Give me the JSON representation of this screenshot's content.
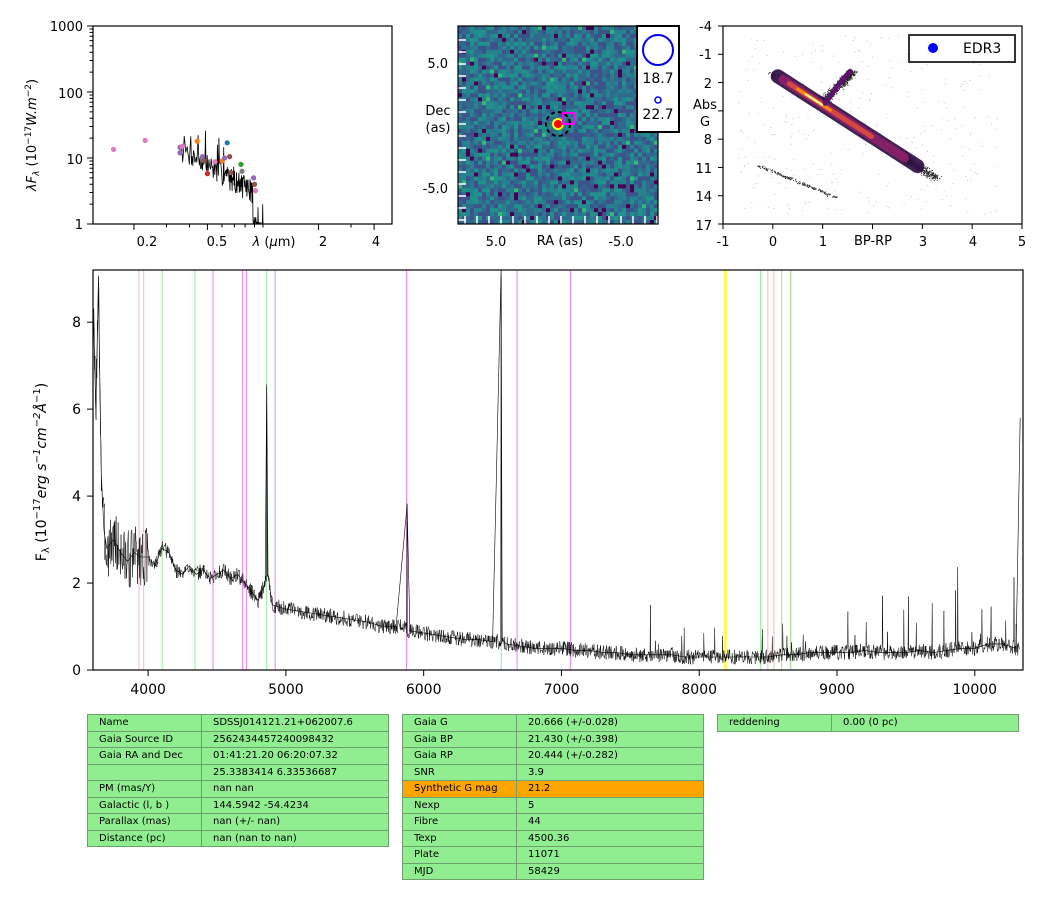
{
  "colors": {
    "spectrum": "#000000",
    "cmd_legend_marker": "#0000ff",
    "table_cell": "#90ee90",
    "table_highlight": "#ffa500",
    "line_yellow": "#ffff00"
  },
  "sed": {
    "ylabel": "λF_λ (10^-17 W.m^-2)",
    "xlabel": "λ (μm)",
    "y_ticks": [
      "1",
      "10",
      "100",
      "1000"
    ],
    "x_ticks": [
      "0.2",
      "0.5",
      "2",
      "4"
    ]
  },
  "image": {
    "ylabel_1": "Dec",
    "ylabel_2": "(as)",
    "xlabel": "RA (as)",
    "x_ticks": [
      "5.0",
      "-5.0"
    ],
    "y_ticks": [
      "5.0",
      "-5.0"
    ],
    "legend_mag_1": "18.7",
    "legend_mag_2": "22.7"
  },
  "cmd": {
    "ylabel_1": "Abs",
    "ylabel_2": "G",
    "xlabel": "BP-RP",
    "y_ticks": [
      "-4",
      "-1",
      "2",
      "5",
      "8",
      "11",
      "14",
      "17"
    ],
    "x_ticks": [
      "-1",
      "0",
      "1",
      "2",
      "3",
      "4",
      "5"
    ],
    "legend_label": "EDR3"
  },
  "spectrum": {
    "ylabel": "F_λ (10^-17 erg s^-1 cm^-2 Å^-1)",
    "y_ticks": [
      "0",
      "2",
      "4",
      "6",
      "8"
    ],
    "x_ticks": [
      "4000",
      "5000",
      "6000",
      "7000",
      "8000",
      "9000",
      "10000"
    ]
  },
  "table_identity": [
    [
      "Name",
      "SDSSJ014121.21+062007.6"
    ],
    [
      "Gaia Source ID",
      "2562434457240098432"
    ],
    [
      "Gaia RA and Dec",
      "01:41:21.20    06:20:07.32"
    ],
    [
      "",
      "25.3383414    6.33536687"
    ],
    [
      "PM (mas/Y)",
      "nan    nan"
    ],
    [
      "Galactic (l, b )",
      "144.5942    -54.4234"
    ],
    [
      "Parallax (mas)",
      "nan (+/- nan)"
    ],
    [
      "Distance (pc)",
      "nan (nan to nan)"
    ]
  ],
  "table_photometry": [
    [
      "Gaia G",
      "20.666 (+/-0.028)"
    ],
    [
      "Gaia BP",
      "21.430 (+/-0.398)"
    ],
    [
      "Gaia RP",
      "20.444 (+/-0.282)"
    ],
    [
      "SNR",
      "3.9"
    ],
    [
      "Synthetic G mag",
      "21.2"
    ],
    [
      "Nexp",
      "5"
    ],
    [
      "Fibre",
      "44"
    ],
    [
      "Texp",
      "4500.36"
    ],
    [
      "Plate",
      "11071"
    ],
    [
      "MJD",
      "58429"
    ]
  ],
  "table_reddening": [
    [
      "reddening",
      "0.00 (0 pc)"
    ]
  ],
  "chart_data": [
    {
      "type": "scatter",
      "panel": "sed",
      "xscale": "log",
      "yscale": "log",
      "xlim": [
        0.12,
        5.0
      ],
      "ylim": [
        1,
        1000
      ],
      "xlabel": "λ (μm)",
      "ylabel": "λF_λ (10^-17 W.m^-2)",
      "points": [
        {
          "x": 0.155,
          "y": 13.5,
          "color": "#e377c2"
        },
        {
          "x": 0.23,
          "y": 18.5,
          "color": "#e377c2"
        },
        {
          "x": 0.355,
          "y": 14.5,
          "color": "#9467bd"
        },
        {
          "x": 0.355,
          "y": 12.0,
          "color": "#9467bd"
        },
        {
          "x": 0.365,
          "y": 15.0,
          "color": "#e377c2"
        },
        {
          "x": 0.44,
          "y": 18.0,
          "color": "#ff7f0e"
        },
        {
          "x": 0.47,
          "y": 10.5,
          "color": "#9467bd"
        },
        {
          "x": 0.48,
          "y": 9.0,
          "color": "#8c564b"
        },
        {
          "x": 0.5,
          "y": 5.8,
          "color": "#d62728"
        },
        {
          "x": 0.55,
          "y": 8.8,
          "color": "#e377c2"
        },
        {
          "x": 0.6,
          "y": 9.0,
          "color": "#ff7f0e"
        },
        {
          "x": 0.62,
          "y": 10.0,
          "color": "#9467bd"
        },
        {
          "x": 0.64,
          "y": 17.0,
          "color": "#1f77b4"
        },
        {
          "x": 0.66,
          "y": 10.5,
          "color": "#8c564b"
        },
        {
          "x": 0.67,
          "y": 6.0,
          "color": "#8c564b"
        },
        {
          "x": 0.76,
          "y": 8.0,
          "color": "#2ca02c"
        },
        {
          "x": 0.77,
          "y": 6.3,
          "color": "#7f7f7f"
        },
        {
          "x": 0.89,
          "y": 5.0,
          "color": "#9467bd"
        },
        {
          "x": 0.9,
          "y": 4.0,
          "color": "#8c564b"
        },
        {
          "x": 0.91,
          "y": 3.2,
          "color": "#e377c2"
        }
      ]
    },
    {
      "type": "heatmap",
      "panel": "image",
      "xlim": [
        9,
        -9
      ],
      "ylim": [
        -9,
        9
      ],
      "xlabel": "RA (as)",
      "ylabel": "Dec (as)",
      "markers": [
        {
          "x": 0,
          "y": 0,
          "style": "dashed circle"
        }
      ],
      "legend": [
        "18.7",
        "22.7"
      ]
    },
    {
      "type": "heatmap",
      "panel": "cmd",
      "xlim": [
        -1,
        5
      ],
      "ylim": [
        17,
        -4
      ],
      "xlabel": "BP-RP",
      "ylabel": "Abs G",
      "series": [
        {
          "name": "EDR3",
          "values": []
        }
      ]
    },
    {
      "type": "line",
      "panel": "spectrum",
      "xlim": [
        3600,
        10350
      ],
      "ylim": [
        0,
        9.2
      ],
      "ylabel": "F_λ (10^-17 erg s^-1 cm^-2 Å^-1)",
      "x": [
        3600,
        3620,
        3640,
        3660,
        3680,
        3700,
        3750,
        3800,
        3850,
        3900,
        3950,
        4000,
        4050,
        4100,
        4150,
        4200,
        4250,
        4300,
        4350,
        4400,
        4450,
        4500,
        4550,
        4600,
        4650,
        4700,
        4750,
        4800,
        4850,
        4861,
        4870,
        4900,
        5000,
        5100,
        5200,
        5300,
        5400,
        5500,
        5600,
        5700,
        5800,
        5880,
        5900,
        6000,
        6100,
        6200,
        6300,
        6400,
        6500,
        6562,
        6570,
        6600,
        6700,
        6800,
        6900,
        7000,
        7100,
        7200,
        7300,
        7400,
        7500,
        7600,
        7700,
        7800,
        7900,
        8000,
        8100,
        8200,
        8300,
        8400,
        8500,
        8600,
        8700,
        8800,
        8900,
        9000,
        9100,
        9200,
        9300,
        9400,
        9500,
        9600,
        9700,
        9800,
        9900,
        10000,
        10100,
        10200,
        10300,
        10330
      ],
      "values": [
        8.5,
        6.0,
        8.8,
        4.5,
        3.2,
        2.8,
        3.0,
        2.7,
        2.5,
        2.7,
        2.6,
        2.6,
        2.4,
        2.8,
        2.7,
        2.3,
        2.2,
        2.4,
        2.2,
        2.3,
        2.1,
        2.2,
        2.3,
        2.1,
        2.2,
        2.0,
        1.8,
        1.6,
        2.0,
        6.5,
        2.2,
        1.5,
        1.4,
        1.35,
        1.3,
        1.25,
        1.2,
        1.15,
        1.1,
        1.0,
        1.0,
        3.8,
        0.9,
        0.85,
        0.8,
        0.75,
        0.7,
        0.7,
        0.65,
        9.2,
        0.7,
        0.6,
        0.55,
        0.5,
        0.5,
        0.5,
        0.45,
        0.45,
        0.4,
        0.4,
        0.35,
        0.35,
        0.35,
        0.35,
        0.3,
        0.3,
        0.3,
        0.3,
        0.3,
        0.3,
        0.3,
        0.35,
        0.35,
        0.4,
        0.4,
        0.4,
        0.4,
        0.45,
        0.4,
        0.4,
        0.4,
        0.45,
        0.4,
        0.45,
        0.5,
        0.5,
        0.6,
        0.6,
        0.5,
        5.8
      ],
      "lines": [
        {
          "x": 3934,
          "color": "#ffb6b6"
        },
        {
          "x": 3968,
          "color": "#ffb6b6"
        },
        {
          "x": 4102,
          "color": "#90ee90"
        },
        {
          "x": 4340,
          "color": "#90ee90"
        },
        {
          "x": 4471,
          "color": "#ee82ee"
        },
        {
          "x": 4686,
          "color": "#ee82ee"
        },
        {
          "x": 4713,
          "color": "#ee82ee"
        },
        {
          "x": 4861,
          "color": "#90ee90"
        },
        {
          "x": 4922,
          "color": "#ee82ee"
        },
        {
          "x": 5876,
          "color": "#ee82ee"
        },
        {
          "x": 6563,
          "color": "#90ee90"
        },
        {
          "x": 6678,
          "color": "#ee82ee"
        },
        {
          "x": 7065,
          "color": "#ee82ee"
        },
        {
          "x": 8190,
          "color": "#ffff00"
        },
        {
          "x": 8446,
          "color": "#90ee90"
        },
        {
          "x": 8498,
          "color": "#ffb6b6"
        },
        {
          "x": 8542,
          "color": "#ffb6b6"
        },
        {
          "x": 8598,
          "color": "#90ee90"
        },
        {
          "x": 8662,
          "color": "#ffb6b6"
        },
        {
          "x": 8665,
          "color": "#90ee90"
        }
      ]
    }
  ]
}
